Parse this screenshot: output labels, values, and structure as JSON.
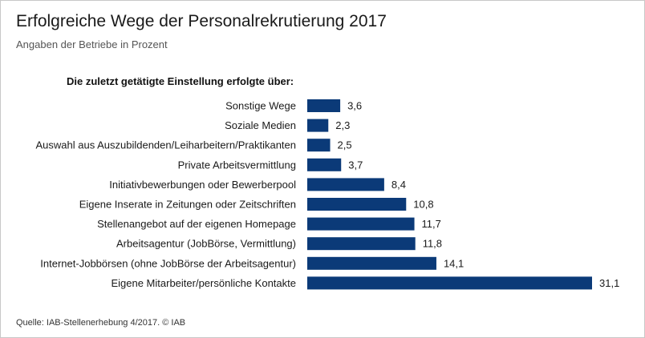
{
  "colors": {
    "bar": "#0b3a78"
  },
  "chart_data": {
    "type": "bar",
    "orientation": "horizontal",
    "title": "Erfolgreiche Wege der Personalrekrutierung 2017",
    "subtitle": "Angaben der Betriebe in Prozent",
    "heading": "Die zuletzt getätigte Einstellung erfolgte über:",
    "source": "Quelle: IAB-Stellenerhebung 4/2017. © IAB",
    "categories": [
      "Sonstige Wege",
      "Soziale Medien",
      "Auswahl aus Auszubildenden/Leiharbeitern/Praktikanten",
      "Private Arbeitsvermittlung",
      "Initiativbewerbungen oder Bewerberpool",
      "Eigene Inserate in Zeitungen oder Zeitschriften",
      "Stellenangebot auf der eigenen Homepage",
      "Arbeitsagentur (JobBörse, Vermittlung)",
      "Internet-Jobbörsen (ohne JobBörse der Arbeitsagentur)",
      "Eigene Mitarbeiter/persönliche Kontakte"
    ],
    "values": [
      3.6,
      2.3,
      2.5,
      3.7,
      8.4,
      10.8,
      11.7,
      11.8,
      14.1,
      31.1
    ],
    "value_labels": [
      "3,6",
      "2,3",
      "2,5",
      "3,7",
      "8,4",
      "10,8",
      "11,7",
      "11,8",
      "14,1",
      "31,1"
    ],
    "xlim": [
      0,
      31.1
    ],
    "grid": false,
    "legend": "none"
  }
}
